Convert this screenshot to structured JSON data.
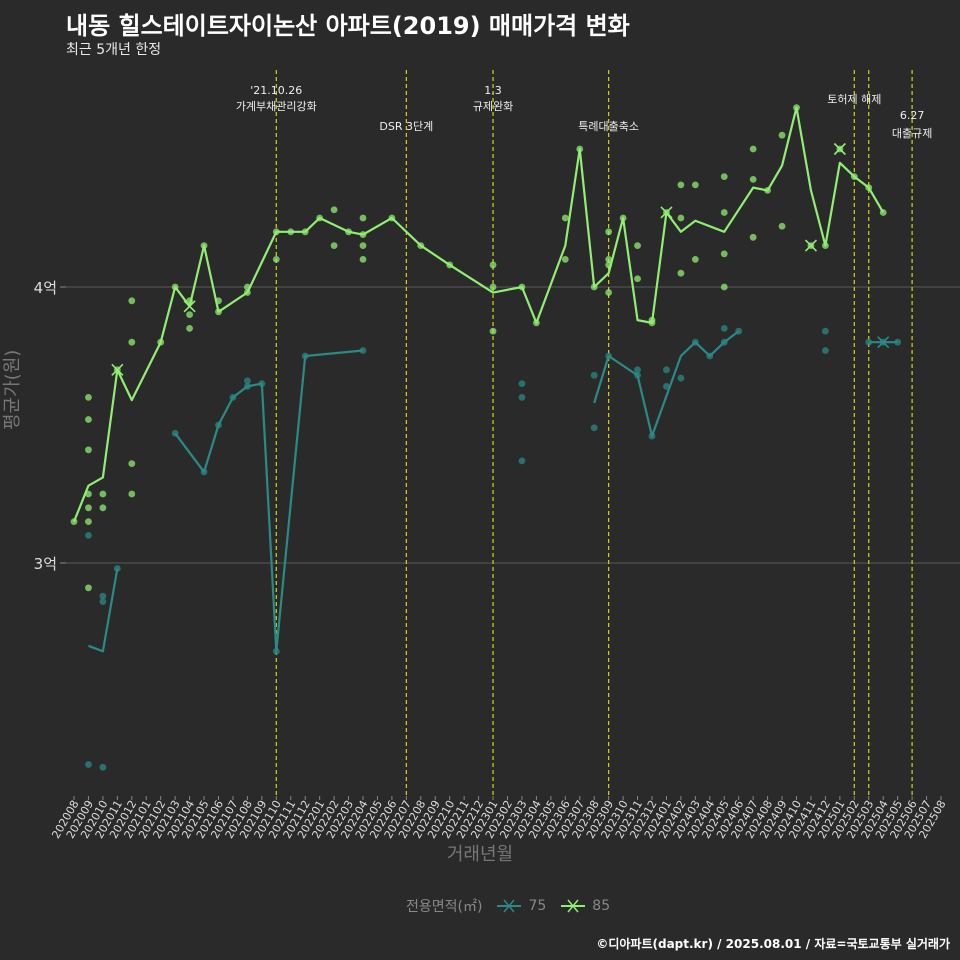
{
  "title": "내동 힐스테이트자이논산 아파트(2019) 매매가격 변화",
  "subtitle": "최근 5개년 한정",
  "caption": "©디아파트(dapt.kr) / 2025.08.01 / 자료=국토교통부 실거래가",
  "colors": {
    "background": "#2b2a2b",
    "series_75": "#2a8a86",
    "series_85": "#90ee72",
    "events": "#d4d414",
    "grid": "#5a5a5a"
  },
  "chart_data": {
    "type": "line",
    "title": "내동 힐스테이트자이논산 아파트(2019) 매매가격 변화",
    "subtitle": "최근 5개년 한정",
    "xlabel": "거래년월",
    "ylabel": "평균가(원)",
    "categories": [
      "202008",
      "202009",
      "202010",
      "202011",
      "202012",
      "202101",
      "202102",
      "202103",
      "202104",
      "202105",
      "202106",
      "202107",
      "202108",
      "202109",
      "202110",
      "202111",
      "202112",
      "202201",
      "202202",
      "202203",
      "202204",
      "202205",
      "202206",
      "202207",
      "202208",
      "202209",
      "202210",
      "202211",
      "202212",
      "202301",
      "202302",
      "202303",
      "202304",
      "202305",
      "202306",
      "202307",
      "202308",
      "202309",
      "202310",
      "202311",
      "202312",
      "202401",
      "202402",
      "202403",
      "202404",
      "202405",
      "202406",
      "202407",
      "202408",
      "202409",
      "202410",
      "202411",
      "202412",
      "202501",
      "202502",
      "202503",
      "202504",
      "202505",
      "202506",
      "202507",
      "202508"
    ],
    "yticks": [
      {
        "value": 3.0,
        "label": "3억"
      },
      {
        "value": 4.0,
        "label": "4억"
      }
    ],
    "ylim": [
      2.2,
      4.82
    ],
    "legend": {
      "title": "전용면적(㎡)",
      "position": "bottom",
      "items": [
        "75",
        "85"
      ]
    },
    "grid": true,
    "series": [
      {
        "name": "75",
        "color": "#2a8a86",
        "line": [
          [
            1,
            2.7
          ],
          [
            2,
            2.68
          ],
          [
            3,
            2.98
          ],
          [
            null,
            null
          ],
          [
            7,
            3.47
          ],
          [
            9,
            3.33
          ],
          [
            10,
            3.5
          ],
          [
            11,
            3.6
          ],
          [
            12,
            3.64
          ],
          [
            13,
            3.65
          ],
          [
            14,
            2.68
          ],
          [
            16,
            3.75
          ],
          [
            20,
            3.77
          ],
          [
            null,
            null
          ],
          [
            36,
            3.58
          ],
          [
            37,
            3.75
          ],
          [
            39,
            3.68
          ],
          [
            40,
            3.46
          ],
          [
            42,
            3.75
          ],
          [
            43,
            3.8
          ],
          [
            44,
            3.75
          ],
          [
            45,
            3.8
          ],
          [
            46,
            3.84
          ],
          [
            null,
            null
          ],
          [
            55,
            3.8
          ],
          [
            57,
            3.8
          ]
        ],
        "points": [
          [
            1,
            3.1
          ],
          [
            1,
            2.27
          ],
          [
            2,
            2.88
          ],
          [
            2,
            2.86
          ],
          [
            2,
            2.26
          ],
          [
            3,
            2.98
          ],
          [
            7,
            3.47
          ],
          [
            9,
            3.33
          ],
          [
            10,
            3.5
          ],
          [
            11,
            3.6
          ],
          [
            12,
            3.64
          ],
          [
            12,
            3.66
          ],
          [
            13,
            3.65
          ],
          [
            14,
            2.68
          ],
          [
            16,
            3.75
          ],
          [
            20,
            3.77
          ],
          [
            31,
            3.65
          ],
          [
            31,
            3.6
          ],
          [
            31,
            3.37
          ],
          [
            36,
            3.68
          ],
          [
            36,
            3.49
          ],
          [
            37,
            3.75
          ],
          [
            39,
            3.7
          ],
          [
            39,
            3.68
          ],
          [
            40,
            3.46
          ],
          [
            41,
            3.7
          ],
          [
            41,
            3.64
          ],
          [
            42,
            3.67
          ],
          [
            43,
            3.8
          ],
          [
            44,
            3.75
          ],
          [
            45,
            3.8
          ],
          [
            45,
            3.85
          ],
          [
            46,
            3.84
          ],
          [
            52,
            3.84
          ],
          [
            52,
            3.77
          ],
          [
            55,
            3.8
          ],
          [
            56,
            3.8
          ],
          [
            57,
            3.8
          ]
        ],
        "crosses": [
          [
            56,
            3.8
          ]
        ]
      },
      {
        "name": "85",
        "color": "#90ee72",
        "line": [
          [
            0,
            3.15
          ],
          [
            1,
            3.28
          ],
          [
            2,
            3.31
          ],
          [
            3,
            3.7
          ],
          [
            4,
            3.59
          ],
          [
            6,
            3.8
          ],
          [
            7,
            4.0
          ],
          [
            8,
            3.93
          ],
          [
            9,
            4.15
          ],
          [
            10,
            3.91
          ],
          [
            12,
            3.98
          ],
          [
            14,
            4.2
          ],
          [
            15,
            4.2
          ],
          [
            16,
            4.2
          ],
          [
            17,
            4.25
          ],
          [
            19,
            4.2
          ],
          [
            20,
            4.19
          ],
          [
            22,
            4.25
          ],
          [
            24,
            4.15
          ],
          [
            26,
            4.08
          ],
          [
            29,
            3.98
          ],
          [
            31,
            4.0
          ],
          [
            32,
            3.87
          ],
          [
            34,
            4.15
          ],
          [
            35,
            4.5
          ],
          [
            36,
            4.0
          ],
          [
            37,
            4.05
          ],
          [
            38,
            4.25
          ],
          [
            39,
            3.88
          ],
          [
            40,
            3.87
          ],
          [
            41,
            4.27
          ],
          [
            42,
            4.2
          ],
          [
            43,
            4.24
          ],
          [
            45,
            4.2
          ],
          [
            47,
            4.36
          ],
          [
            48,
            4.35
          ],
          [
            49,
            4.44
          ],
          [
            50,
            4.65
          ],
          [
            51,
            4.35
          ],
          [
            52,
            4.15
          ],
          [
            53,
            4.45
          ],
          [
            54,
            4.4
          ],
          [
            55,
            4.36
          ],
          [
            56,
            4.27
          ]
        ],
        "points": [
          [
            0,
            3.15
          ],
          [
            1,
            3.6
          ],
          [
            1,
            3.52
          ],
          [
            1,
            3.41
          ],
          [
            1,
            3.25
          ],
          [
            1,
            3.2
          ],
          [
            1,
            3.15
          ],
          [
            1,
            2.91
          ],
          [
            2,
            3.25
          ],
          [
            2,
            3.2
          ],
          [
            3,
            3.7
          ],
          [
            4,
            3.95
          ],
          [
            4,
            3.8
          ],
          [
            4,
            3.36
          ],
          [
            4,
            3.25
          ],
          [
            6,
            3.8
          ],
          [
            7,
            4.0
          ],
          [
            8,
            3.95
          ],
          [
            8,
            3.9
          ],
          [
            8,
            3.85
          ],
          [
            9,
            4.15
          ],
          [
            10,
            3.95
          ],
          [
            10,
            3.91
          ],
          [
            12,
            3.98
          ],
          [
            12,
            4.0
          ],
          [
            14,
            4.2
          ],
          [
            14,
            4.1
          ],
          [
            15,
            4.2
          ],
          [
            16,
            4.2
          ],
          [
            17,
            4.25
          ],
          [
            18,
            4.28
          ],
          [
            18,
            4.15
          ],
          [
            19,
            4.2
          ],
          [
            20,
            4.25
          ],
          [
            20,
            4.15
          ],
          [
            20,
            4.1
          ],
          [
            20,
            4.19
          ],
          [
            22,
            4.25
          ],
          [
            24,
            4.15
          ],
          [
            26,
            4.08
          ],
          [
            29,
            4.08
          ],
          [
            29,
            4.0
          ],
          [
            29,
            3.84
          ],
          [
            31,
            4.0
          ],
          [
            32,
            3.87
          ],
          [
            34,
            4.25
          ],
          [
            34,
            4.1
          ],
          [
            35,
            4.5
          ],
          [
            36,
            4.0
          ],
          [
            37,
            4.2
          ],
          [
            37,
            4.1
          ],
          [
            37,
            4.08
          ],
          [
            37,
            3.98
          ],
          [
            38,
            4.25
          ],
          [
            39,
            4.15
          ],
          [
            39,
            4.03
          ],
          [
            40,
            3.88
          ],
          [
            40,
            3.87
          ],
          [
            41,
            4.27
          ],
          [
            42,
            4.37
          ],
          [
            42,
            4.25
          ],
          [
            42,
            4.05
          ],
          [
            43,
            4.37
          ],
          [
            43,
            4.1
          ],
          [
            45,
            4.4
          ],
          [
            45,
            4.27
          ],
          [
            45,
            4.12
          ],
          [
            45,
            4.0
          ],
          [
            47,
            4.5
          ],
          [
            47,
            4.39
          ],
          [
            47,
            4.18
          ],
          [
            48,
            4.35
          ],
          [
            49,
            4.55
          ],
          [
            49,
            4.22
          ],
          [
            50,
            4.65
          ],
          [
            51,
            4.15
          ],
          [
            52,
            4.15
          ],
          [
            53,
            4.5
          ],
          [
            54,
            4.4
          ],
          [
            55,
            4.36
          ],
          [
            56,
            4.27
          ]
        ],
        "crosses": [
          [
            3,
            3.7
          ],
          [
            8,
            3.93
          ],
          [
            41,
            4.27
          ],
          [
            51,
            4.15
          ],
          [
            53,
            4.5
          ]
        ]
      }
    ],
    "events": [
      {
        "index": 14,
        "lines": [
          "'21.10.26",
          "가계부채관리강화"
        ]
      },
      {
        "index": 23,
        "lines": [
          "DSR 3단계"
        ]
      },
      {
        "index": 29,
        "lines": [
          "1.3",
          "규제완화"
        ]
      },
      {
        "index": 37,
        "lines": [
          "특례대출축소"
        ]
      },
      {
        "index": 54,
        "lines": [
          "토허제 해제"
        ]
      },
      {
        "index": 55,
        "lines": []
      },
      {
        "index": 58,
        "lines": [
          "6.27",
          "대출규제"
        ]
      }
    ]
  }
}
